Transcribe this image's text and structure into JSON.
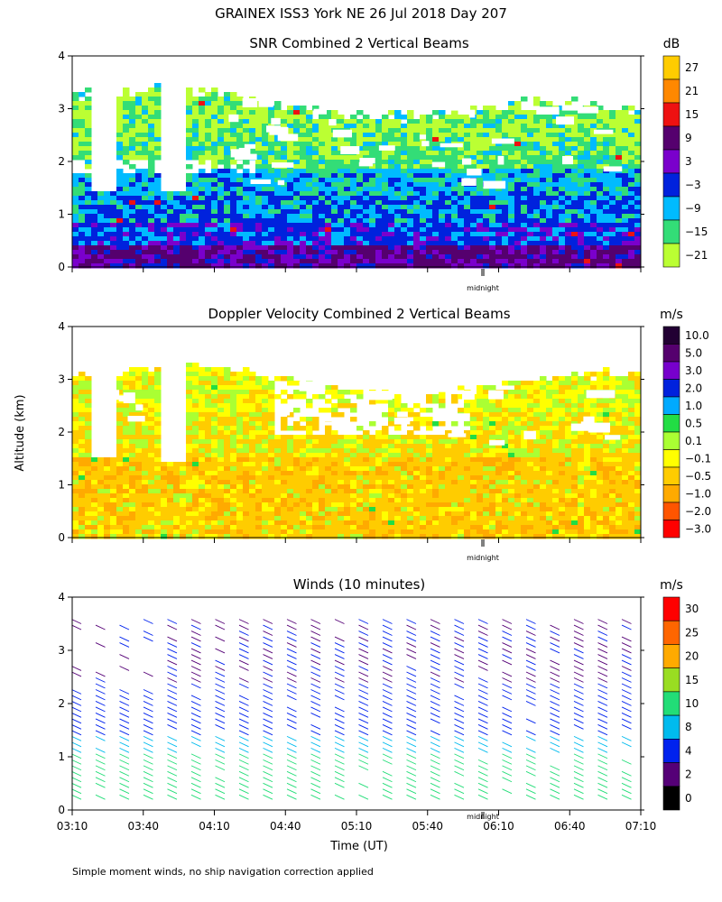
{
  "figure": {
    "title": "GRAINEX ISS3 York NE  26 Jul 2018 Day 207",
    "y_axis_label": "Altitude (km)",
    "x_axis_label": "Time (UT)",
    "footnote": "Simple moment winds, no ship navigation correction applied",
    "midnight_label": "midnight"
  },
  "chart_data": [
    {
      "type": "heatmap",
      "title": "SNR Combined 2 Vertical Beams",
      "colorbar": {
        "unit": "dB",
        "labels": [
          "27",
          "21",
          "15",
          "9",
          "3",
          "−3",
          "−9",
          "−15",
          "−21"
        ],
        "colors": [
          "#ffcc00",
          "#ff8800",
          "#ee1111",
          "#55006e",
          "#7a00cc",
          "#0022dd",
          "#00bbff",
          "#33dd77",
          "#bbff33"
        ]
      },
      "yticks": [
        "0",
        "1",
        "2",
        "3",
        "4"
      ],
      "ylim": [
        0,
        4
      ]
    },
    {
      "type": "heatmap",
      "title": "Doppler Velocity Combined 2 Vertical Beams",
      "colorbar": {
        "unit": "m/s",
        "labels": [
          "10.0",
          "5.0",
          "3.0",
          "2.0",
          "1.0",
          "0.5",
          "0.1",
          "−0.1",
          "−0.5",
          "−1.0",
          "−2.0",
          "−3.0"
        ],
        "colors": [
          "#220033",
          "#55006e",
          "#7700cc",
          "#0022dd",
          "#00aaff",
          "#22dd44",
          "#aaff33",
          "#ffff00",
          "#ffcc00",
          "#ffaa00",
          "#ff5500",
          "#ff0000"
        ]
      },
      "yticks": [
        "0",
        "1",
        "2",
        "3",
        "4"
      ],
      "ylim": [
        0,
        4
      ]
    },
    {
      "type": "scatter",
      "title": "Winds (10 minutes)",
      "colorbar": {
        "unit": "m/s",
        "labels": [
          "30",
          "25",
          "20",
          "15",
          "10",
          "8",
          "4",
          "2",
          "0"
        ],
        "colors": [
          "#ff0000",
          "#ff6600",
          "#ffaa00",
          "#99dd22",
          "#22dd77",
          "#00bbee",
          "#0022ee",
          "#550077",
          "#000000"
        ]
      },
      "yticks": [
        "0",
        "1",
        "2",
        "3",
        "4"
      ],
      "ylim": [
        0,
        4
      ],
      "xticks": [
        "03:10",
        "03:40",
        "04:10",
        "04:40",
        "05:10",
        "05:40",
        "06:10",
        "06:40",
        "07:10"
      ]
    }
  ]
}
